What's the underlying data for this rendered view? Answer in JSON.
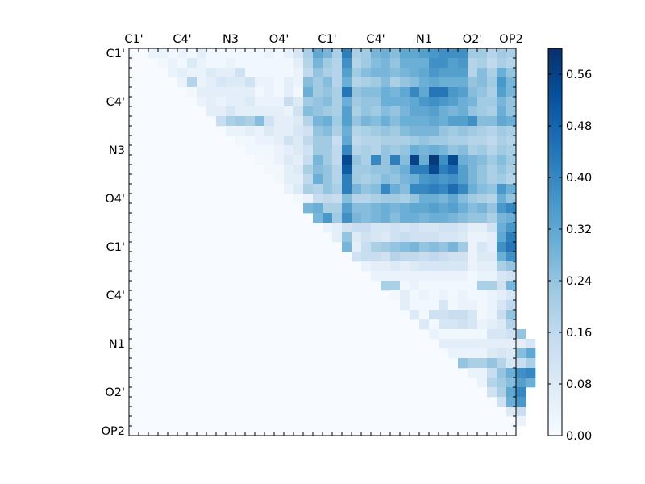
{
  "chart_data": {
    "type": "heatmap",
    "colormap": "Blues",
    "size": 40,
    "tick_labels": [
      "C1'",
      "C4'",
      "N3",
      "O4'",
      "C1'",
      "C4'",
      "N1",
      "O2'",
      "OP2"
    ],
    "tick_label_indices": [
      0,
      5,
      10,
      15,
      20,
      25,
      30,
      35,
      39
    ],
    "colorbar": {
      "vmin": 0.0,
      "vmax": 0.6,
      "tick_values": [
        0.0,
        0.08,
        0.16,
        0.24,
        0.32,
        0.4,
        0.48,
        0.56
      ],
      "tick_labels": [
        "0.00",
        "0.08",
        "0.16",
        "0.24",
        "0.32",
        "0.40",
        "0.48",
        "0.56"
      ]
    },
    "matrix_rows": [
      ". . 0.04 0.04 0.02 0.04 0.02 0.06 0.02 0.02 0.02 0.02 0.02 0.02 0.04 0.02 0.05 0.10 0.20 0.32 0.28 0.20 0.42 0.20 0.22 0.28 0.30 0.26 0.32 0.32 0.34 0.36 0.38 0.38 0.38 0.22 0.22 0.18 0.22 0.20",
      ". . . 0.02 0.04 0.02 0.08 0.04 0.02 0.02 0.04 0.02 0.02 0.02 0.02 0.02 0.02 0.06 0.18 0.28 0.22 0.18 0.38 0.18 0.22 0.26 0.28 0.24 0.30 0.30 0.30 0.38 0.38 0.34 0.36 0.18 0.20 0.16 0.20 0.18",
      ". . . . 0.04 0.06 0.04 0.04 0.08 0.06 0.06 0.12 0.02 0.02 0.02 0.02 0.02 0.04 0.16 0.24 0.20 0.18 0.34 0.22 0.26 0.28 0.28 0.26 0.28 0.30 0.32 0.36 0.34 0.34 0.34 0.18 0.26 0.20 0.30 0.24",
      ". . . . . 0.04 0.18 0.04 0.06 0.10 0.08 0.08 0.12 0.04 0.04 0.02 0.06 0.04 0.26 0.22 0.26 0.18 0.30 0.18 0.20 0.22 0.26 0.20 0.24 0.26 0.30 0.32 0.30 0.30 0.30 0.24 0.26 0.22 0.36 0.28",
      ". . . . . . 0.02 0.06 0.06 0.06 0.06 0.06 0.06 0.02 0.04 0.02 0.06 0.02 0.30 0.22 0.24 0.20 0.44 0.24 0.26 0.26 0.30 0.28 0.32 0.40 0.32 0.44 0.44 0.36 0.34 0.26 0.24 0.20 0.34 0.28",
      ". . . . . . . 0.04 0.06 0.04 0.06 0.06 0.08 0.04 0.04 0.04 0.14 0.08 0.22 0.24 0.26 0.20 0.30 0.22 0.24 0.24 0.30 0.30 0.30 0.32 0.36 0.38 0.36 0.34 0.30 0.28 0.22 0.22 0.28 0.24",
      ". . . . . . . . 0.06 0.06 0.10 0.06 0.06 0.06 0.06 0.06 0.04 0.12 0.26 0.24 0.22 0.20 0.34 0.20 0.24 0.22 0.26 0.24 0.28 0.32 0.32 0.34 0.30 0.28 0.30 0.24 0.22 0.20 0.30 0.24",
      ". . . . . . . . . 0.14 0.20 0.22 0.20 0.26 0.12 0.06 0.06 0.08 0.18 0.28 0.30 0.22 0.34 0.24 0.28 0.26 0.30 0.26 0.30 0.30 0.30 0.32 0.30 0.34 0.34 0.38 0.26 0.26 0.32 0.30",
      ". . . . . . . . . . 0.04 0.04 0.06 0.04 0.08 0.06 0.06 0.10 0.12 0.24 0.26 0.20 0.30 0.18 0.20 0.22 0.24 0.22 0.26 0.28 0.28 0.28 0.24 0.22 0.24 0.22 0.20 0.18 0.22 0.20",
      ". . . . . . . . . . . 0.02 0.02 0.04 0.04 0.06 0.12 0.08 0.16 0.22 0.22 0.14 0.32 0.16 0.18 0.18 0.20 0.20 0.20 0.22 0.24 0.22 0.22 0.20 0.20 0.18 0.18 0.16 0.20 0.18",
      ". . . . . . . . . . . . 0.02 0.02 0.02 0.04 0.06 0.08 0.12 0.22 0.22 0.16 0.40 0.18 0.20 0.18 0.24 0.22 0.24 0.30 0.28 0.30 0.28 0.24 0.26 0.20 0.22 0.18 0.22 0.20",
      ". . . . . . . . . . . . . 0.02 0.02 0.04 0.08 0.06 0.14 0.28 0.22 0.16 0.54 0.24 0.20 0.40 0.24 0.42 0.26 0.56 0.30 0.58 0.38 0.54 0.30 0.28 0.26 0.22 0.26 0.22",
      ". . . . . . . . . . . . . . 0.02 0.02 0.06 0.08 0.20 0.26 0.24 0.18 0.50 0.22 0.22 0.24 0.24 0.26 0.30 0.42 0.42 0.54 0.42 0.46 0.34 0.28 0.24 0.20 0.24 0.20",
      ". . . . . . . . . . . . . . . 0.02 0.06 0.06 0.16 0.30 0.24 0.18 0.42 0.22 0.20 0.22 0.26 0.24 0.28 0.30 0.36 0.38 0.36 0.38 0.34 0.28 0.24 0.20 0.22 0.18",
      ". . . . . . . . . . . . . . . . 0.04 0.08 0.20 0.18 0.24 0.20 0.42 0.28 0.24 0.26 0.40 0.30 0.26 0.40 0.40 0.42 0.40 0.46 0.40 0.30 0.26 0.24 0.36 0.30",
      ". . . . . . . . . . . . . . . . . 0.02 0.04 0.14 0.16 0.14 0.26 0.18 0.18 0.20 0.22 0.22 0.20 0.24 0.30 0.30 0.28 0.32 0.26 0.22 0.20 0.18 0.30 0.24",
      ". . . . . . . . . . . . . . . . . . 0.28 0.30 0.20 0.20 0.34 0.26 0.26 0.28 0.30 0.28 0.30 0.32 0.32 0.34 0.32 0.34 0.30 0.26 0.28 0.24 0.36 0.40",
      ". . . . . . . . . . . . . . . . . . . 0.28 0.36 0.22 0.38 0.28 0.26 0.28 0.30 0.26 0.30 0.30 0.28 0.30 0.30 0.28 0.26 0.24 0.24 0.20 0.28 0.30",
      ". . . . . . . . . . . . . . . . . . . . 0.04 0.06 0.12 0.14 0.14 0.10 0.10 0.12 0.10 0.12 0.10 0.10 0.12 0.12 0.10 0.06 0.06 0.12 0.30 0.36",
      ". . . . . . . . . . . . . . . . . . . . . 0.06 0.24 0.08 0.12 0.10 0.08 0.12 0.14 0.12 0.12 0.12 0.10 0.10 0.08 0.04 0.04 0.06 0.32 0.42",
      ". . . . . . . . . . . . . . . . . . . . . . 0.28 0.06 0.14 0.20 0.22 0.24 0.26 0.28 0.24 0.26 0.24 0.28 0.22 0.04 0.10 0.06 0.38 0.44",
      ". . . . . . . . . . . . . . . . . . . . . . . 0.12 0.14 0.14 0.12 0.18 0.16 0.16 0.14 0.16 0.14 0.12 0.12 0.04 0.08 0.08 0.30 0.38",
      ". . . . . . . . . . . . . . . . . . . . . . . . 0.04 0.06 0.06 0.08 0.06 0.08 0.10 0.10 0.10 0.10 0.10 0.04 0.06 0.06 0.20 0.24",
      ". . . . . . . . . . . . . . . . . . . . . . . . . 0.04 0.04 0.04 0.04 0.04 0.04 0.04 0.04 0.04 0.04 0.02 0.04 0.04 0.10 0.12",
      ". . . . . . . . . . . . . . . . . . . . . . . . . . 0.20 0.20 0.02 0.04 0.02 0.02 0.02 0.02 0.02 0.02 0.20 0.20 0.12 0.28",
      ". . . . . . . . . . . . . . . . . . . . . . . . . . . 0.02 0.06 0.02 0.04 0.02 0.04 0.02 0.04 0.02 0.02 0.04 0.06 0.10",
      ". . . . . . . . . . . . . . . . . . . . . . . . . . . . 0.06 0.02 0.02 0.02 0.10 0.02 0.04 0.04 0.02 0.04 0.10 0.16",
      ". . . . . . . . . . . . . . . . . . . . . . . . . . . . . 0.08 0.02 0.12 0.12 0.14 0.14 0.10 0.02 0.04 0.14 0.24",
      ". . . . . . . . . . . . . . . . . . . . . . . . . . . . . . 0.08 0.02 0.10 0.10 0.12 0.10 0.04 0.06 0.08 0.18",
      ". . . . . . . . . . . . . . . . . . . . . . . . . . . . . . . 0.04 0.02 0.02 0.02 0.02 0.02 0.10 0.10 0.12 0.24",
      ". . . . . . . . . . . . . . . . . . . . . . . . . . . . . . . . 0.06 0.06 0.06 0.06 0.06 0.06 0.06 0.06 0.06 0.10",
      ". . . . . . . . . . . . . . . . . . . . . . . . . . . . . . . . . 0.04 0.04 0.04 0.04 0.08 0.10 0.08 0.26 0.32",
      ". . . . . . . . . . . . . . . . . . . . . . . . . . . . . . . . . . 0.24 0.20 0.20 0.24 0.18 0.10 0.14 0.20",
      ". . . . . . . . . . . . . . . . . . . . . . . . . . . . . . . . . . . 0.04 0.04 0.14 0.24 0.30 0.38 0.40",
      ". . . . . . . . . . . . . . . . . . . . . . . . . . . . . . . . . . . . 0.04 0.18 0.22 0.26 0.34 0.30",
      ". . . . . . . . . . . . . . . . . . . . . . . . . . . . . . . . . . . . . 0.12 0.20 0.32 0.40",
      ". . . . . . . . . . . . . . . . . . . . . . . . . . . . . . . . . . . . . . 0.12 0.30 0.36",
      ". . . . . . . . . . . . . . . . . . . . . . . . . . . . . . . . . . . . . . . 0.08 0.14",
      ". . . . . . . . . . . . . . . . . . . . . . . . . . . . . . . . . . . . . . . . 0.04",
      ". . . . . . . . . . . . . . . . . . . . . . . . . . . . . . . . . . . . . . . . ."
    ]
  }
}
